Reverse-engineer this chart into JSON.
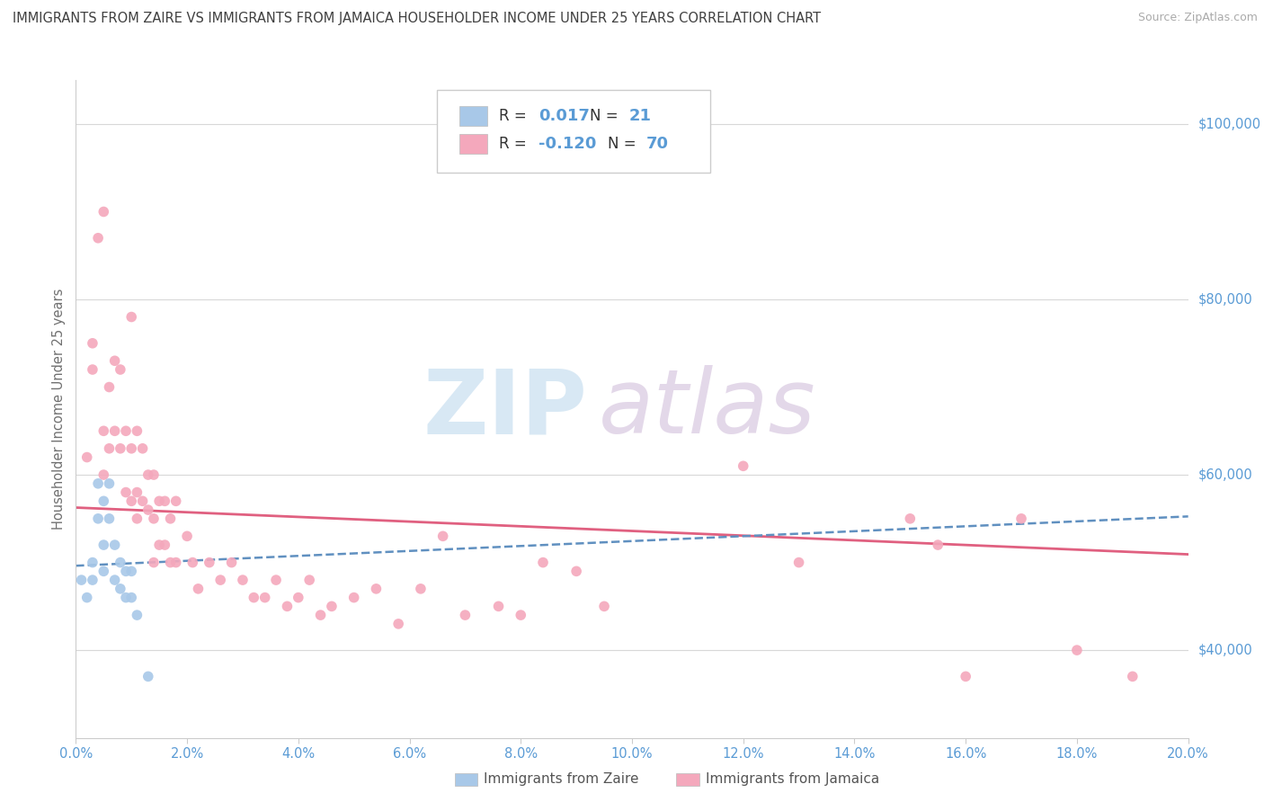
{
  "title": "IMMIGRANTS FROM ZAIRE VS IMMIGRANTS FROM JAMAICA HOUSEHOLDER INCOME UNDER 25 YEARS CORRELATION CHART",
  "source": "Source: ZipAtlas.com",
  "ylabel": "Householder Income Under 25 years",
  "xlim": [
    0.0,
    0.2
  ],
  "ylim": [
    30000,
    105000
  ],
  "yticks": [
    40000,
    60000,
    80000,
    100000
  ],
  "ytick_labels": [
    "$40,000",
    "$60,000",
    "$80,000",
    "$100,000"
  ],
  "xticks": [
    0.0,
    0.02,
    0.04,
    0.06,
    0.08,
    0.1,
    0.12,
    0.14,
    0.16,
    0.18,
    0.2
  ],
  "xtick_labels": [
    "0.0%",
    "2.0%",
    "4.0%",
    "6.0%",
    "8.0%",
    "10.0%",
    "12.0%",
    "14.0%",
    "16.0%",
    "18.0%",
    "20.0%"
  ],
  "zaire_color": "#a8c8e8",
  "jamaica_color": "#f4a8bc",
  "zaire_line_color": "#6090c0",
  "jamaica_line_color": "#e06080",
  "background_color": "#ffffff",
  "grid_color": "#d8d8d8",
  "title_color": "#404040",
  "tick_label_color": "#5a9bd5",
  "zaire_scatter": [
    [
      0.001,
      48000
    ],
    [
      0.002,
      46000
    ],
    [
      0.003,
      50000
    ],
    [
      0.003,
      48000
    ],
    [
      0.004,
      59000
    ],
    [
      0.004,
      55000
    ],
    [
      0.005,
      57000
    ],
    [
      0.005,
      52000
    ],
    [
      0.005,
      49000
    ],
    [
      0.006,
      59000
    ],
    [
      0.006,
      55000
    ],
    [
      0.007,
      52000
    ],
    [
      0.007,
      48000
    ],
    [
      0.008,
      50000
    ],
    [
      0.008,
      47000
    ],
    [
      0.009,
      49000
    ],
    [
      0.009,
      46000
    ],
    [
      0.01,
      49000
    ],
    [
      0.01,
      46000
    ],
    [
      0.011,
      44000
    ],
    [
      0.013,
      37000
    ]
  ],
  "jamaica_scatter": [
    [
      0.002,
      62000
    ],
    [
      0.003,
      75000
    ],
    [
      0.003,
      72000
    ],
    [
      0.004,
      87000
    ],
    [
      0.005,
      90000
    ],
    [
      0.005,
      65000
    ],
    [
      0.005,
      60000
    ],
    [
      0.006,
      70000
    ],
    [
      0.006,
      63000
    ],
    [
      0.007,
      73000
    ],
    [
      0.007,
      65000
    ],
    [
      0.008,
      72000
    ],
    [
      0.008,
      63000
    ],
    [
      0.009,
      65000
    ],
    [
      0.009,
      58000
    ],
    [
      0.01,
      78000
    ],
    [
      0.01,
      63000
    ],
    [
      0.01,
      57000
    ],
    [
      0.011,
      65000
    ],
    [
      0.011,
      58000
    ],
    [
      0.011,
      55000
    ],
    [
      0.012,
      63000
    ],
    [
      0.012,
      57000
    ],
    [
      0.013,
      60000
    ],
    [
      0.013,
      56000
    ],
    [
      0.014,
      60000
    ],
    [
      0.014,
      55000
    ],
    [
      0.014,
      50000
    ],
    [
      0.015,
      57000
    ],
    [
      0.015,
      52000
    ],
    [
      0.016,
      57000
    ],
    [
      0.016,
      52000
    ],
    [
      0.017,
      55000
    ],
    [
      0.017,
      50000
    ],
    [
      0.018,
      57000
    ],
    [
      0.018,
      50000
    ],
    [
      0.02,
      53000
    ],
    [
      0.021,
      50000
    ],
    [
      0.022,
      47000
    ],
    [
      0.024,
      50000
    ],
    [
      0.026,
      48000
    ],
    [
      0.028,
      50000
    ],
    [
      0.03,
      48000
    ],
    [
      0.032,
      46000
    ],
    [
      0.034,
      46000
    ],
    [
      0.036,
      48000
    ],
    [
      0.038,
      45000
    ],
    [
      0.04,
      46000
    ],
    [
      0.042,
      48000
    ],
    [
      0.044,
      44000
    ],
    [
      0.046,
      45000
    ],
    [
      0.05,
      46000
    ],
    [
      0.054,
      47000
    ],
    [
      0.058,
      43000
    ],
    [
      0.062,
      47000
    ],
    [
      0.066,
      53000
    ],
    [
      0.07,
      44000
    ],
    [
      0.076,
      45000
    ],
    [
      0.08,
      44000
    ],
    [
      0.084,
      50000
    ],
    [
      0.09,
      49000
    ],
    [
      0.095,
      45000
    ],
    [
      0.12,
      61000
    ],
    [
      0.13,
      50000
    ],
    [
      0.15,
      55000
    ],
    [
      0.155,
      52000
    ],
    [
      0.16,
      37000
    ],
    [
      0.17,
      55000
    ],
    [
      0.18,
      40000
    ],
    [
      0.19,
      37000
    ]
  ]
}
